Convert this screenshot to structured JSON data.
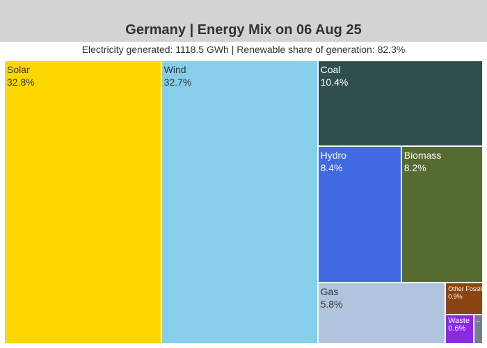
{
  "header": {
    "title": "Germany | Energy Mix on 06 Aug 25",
    "subtitle": "Electricity generated: 1118.5 GWh | Renewable share of generation: 82.3%"
  },
  "chart_data": {
    "type": "treemap",
    "title": "Germany | Energy Mix on 06 Aug 25",
    "subtitle": "Electricity generated: 1118.5 GWh | Renewable share of generation: 82.3%",
    "unit": "% of generation",
    "items": [
      {
        "name": "Solar",
        "label": "32.8%",
        "value": 32.8,
        "color": "#FFD700",
        "text_color": "#333333"
      },
      {
        "name": "Wind",
        "label": "32.7%",
        "value": 32.7,
        "color": "#87CEEB",
        "text_color": "#333333"
      },
      {
        "name": "Coal",
        "label": "10.4%",
        "value": 10.4,
        "color": "#2F4F4F",
        "text_color": "#ffffff"
      },
      {
        "name": "Hydro",
        "label": "8.4%",
        "value": 8.4,
        "color": "#4169E1",
        "text_color": "#ffffff"
      },
      {
        "name": "Biomass",
        "label": "8.2%",
        "value": 8.2,
        "color": "#556B2F",
        "text_color": "#ffffff"
      },
      {
        "name": "Gas",
        "label": "5.8%",
        "value": 5.8,
        "color": "#B0C4DE",
        "text_color": "#333333"
      },
      {
        "name": "Other Fossil",
        "label": "0.9%",
        "value": 0.9,
        "color": "#8B4513",
        "text_color": "#ffffff"
      },
      {
        "name": "Waste",
        "label": "0.6%",
        "value": 0.6,
        "color": "#8A2BE2",
        "text_color": "#ffffff"
      },
      {
        "name": "Other",
        "label": "",
        "value": 0.2,
        "color": "#708090",
        "text_color": "#ffffff"
      }
    ]
  }
}
